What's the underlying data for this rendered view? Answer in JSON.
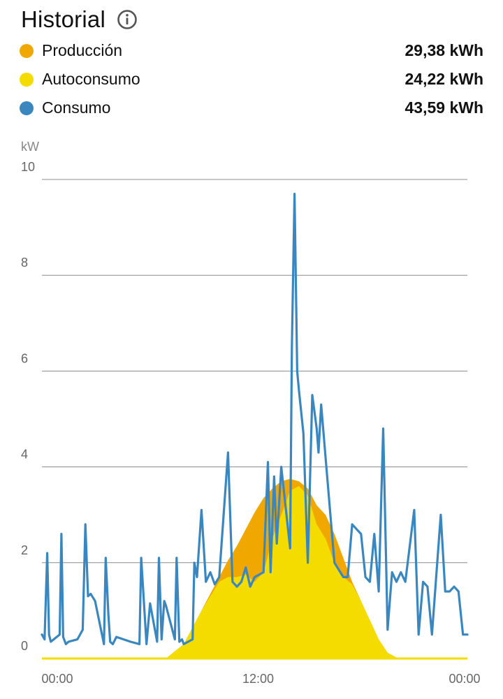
{
  "header": {
    "title": "Historial",
    "info_icon": "info-circle-icon"
  },
  "legend": [
    {
      "label": "Producción",
      "value": "29,38 kWh",
      "color": "#F0A800"
    },
    {
      "label": "Autoconsumo",
      "value": "24,22 kWh",
      "color": "#F5DC00"
    },
    {
      "label": "Consumo",
      "value": "43,59 kWh",
      "color": "#3A87C0"
    }
  ],
  "chart_data": {
    "type": "area",
    "ylabel": "kW",
    "ylim": [
      0,
      10
    ],
    "yticks": [
      "0",
      "2",
      "4",
      "6",
      "8",
      "10"
    ],
    "xlim": [
      0,
      24
    ],
    "xticks": [
      {
        "label": "00:00",
        "hour": 0
      },
      {
        "label": "12:00",
        "hour": 12
      },
      {
        "label": "00:00",
        "hour": 24
      }
    ],
    "grid": true,
    "series": [
      {
        "name": "Producción",
        "kind": "area",
        "color": "#F0A800",
        "x": [
          0,
          6,
          7,
          8,
          9,
          10,
          10.5,
          11,
          11.5,
          12,
          12.5,
          13,
          13.5,
          14,
          14.5,
          15,
          15.5,
          16,
          16.5,
          17,
          17.5,
          18,
          18.5,
          19,
          19.5,
          20,
          21,
          24
        ],
        "values": [
          0,
          0,
          0,
          0.3,
          1.0,
          1.7,
          2.05,
          2.35,
          2.7,
          3.05,
          3.35,
          3.55,
          3.7,
          3.75,
          3.7,
          3.55,
          3.2,
          3.0,
          2.6,
          2.1,
          1.6,
          1.2,
          0.8,
          0.4,
          0.12,
          0.02,
          0,
          0
        ]
      },
      {
        "name": "Autoconsumo",
        "kind": "area",
        "color": "#F5DC00",
        "x": [
          0,
          7,
          8,
          9,
          10,
          10.5,
          11,
          11.5,
          12,
          12.5,
          13,
          13.5,
          14,
          14.5,
          15,
          15.5,
          16,
          16.5,
          17,
          17.5,
          18,
          18.5,
          19,
          19.5,
          20,
          21,
          24
        ],
        "values": [
          0,
          0,
          0.3,
          1.0,
          1.6,
          1.7,
          1.7,
          1.75,
          1.6,
          1.8,
          2.5,
          3.0,
          3.5,
          3.6,
          3.4,
          2.8,
          2.5,
          2.0,
          1.7,
          1.55,
          1.2,
          0.8,
          0.4,
          0.12,
          0.02,
          0,
          0
        ]
      },
      {
        "name": "Consumo",
        "kind": "line",
        "color": "#3A87C0",
        "x": [
          0,
          0.15,
          0.3,
          0.4,
          0.5,
          1.0,
          1.1,
          1.2,
          1.35,
          1.5,
          2.0,
          2.3,
          2.45,
          2.6,
          2.75,
          3.0,
          3.5,
          3.6,
          3.75,
          3.85,
          4.0,
          4.2,
          5.0,
          5.5,
          5.6,
          5.75,
          5.9,
          6.1,
          6.5,
          6.6,
          6.75,
          6.9,
          7.0,
          7.5,
          7.6,
          7.75,
          7.9,
          8.0,
          8.5,
          8.6,
          8.75,
          9.0,
          9.25,
          9.5,
          9.75,
          10.0,
          10.5,
          10.75,
          11.0,
          11.25,
          11.5,
          11.75,
          12.0,
          12.5,
          12.75,
          12.9,
          13.1,
          13.25,
          13.5,
          14.0,
          14.1,
          14.25,
          14.4,
          14.5,
          14.75,
          15.0,
          15.25,
          15.5,
          15.6,
          15.75,
          16.0,
          16.5,
          17.0,
          17.25,
          17.5,
          17.75,
          18.0,
          18.25,
          18.5,
          18.75,
          19.0,
          19.25,
          19.5,
          19.75,
          20.0,
          20.25,
          20.5,
          21.0,
          21.25,
          21.5,
          21.75,
          22.0,
          22.5,
          22.75,
          23.0,
          23.25,
          23.5,
          23.75,
          24.0
        ],
        "values": [
          0.5,
          0.4,
          2.2,
          0.5,
          0.35,
          0.5,
          2.6,
          0.45,
          0.3,
          0.35,
          0.4,
          0.6,
          2.8,
          1.3,
          1.35,
          1.2,
          0.3,
          2.1,
          0.9,
          0.35,
          0.3,
          0.45,
          0.35,
          0.3,
          2.1,
          1.2,
          0.3,
          1.15,
          0.35,
          2.1,
          0.4,
          1.2,
          1.1,
          0.4,
          2.1,
          0.35,
          0.4,
          0.3,
          0.4,
          2.0,
          1.7,
          3.1,
          1.6,
          1.8,
          1.55,
          1.7,
          4.3,
          1.6,
          1.5,
          1.6,
          1.9,
          1.5,
          1.7,
          1.8,
          4.1,
          1.8,
          3.8,
          2.4,
          4.0,
          2.3,
          6.5,
          9.7,
          6.0,
          5.6,
          4.7,
          2.0,
          5.5,
          4.8,
          4.3,
          5.3,
          4.2,
          2.0,
          1.7,
          1.7,
          2.8,
          2.7,
          2.6,
          1.7,
          1.6,
          2.6,
          1.4,
          4.8,
          0.6,
          1.8,
          1.6,
          1.8,
          1.6,
          3.1,
          0.5,
          1.6,
          1.5,
          0.5,
          3.0,
          1.4,
          1.4,
          1.5,
          1.4,
          0.5,
          0.5
        ]
      }
    ]
  }
}
